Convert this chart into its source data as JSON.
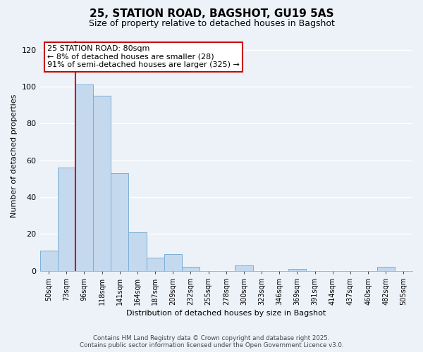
{
  "title": "25, STATION ROAD, BAGSHOT, GU19 5AS",
  "subtitle": "Size of property relative to detached houses in Bagshot",
  "xlabel": "Distribution of detached houses by size in Bagshot",
  "ylabel": "Number of detached properties",
  "bar_labels": [
    "50sqm",
    "73sqm",
    "96sqm",
    "118sqm",
    "141sqm",
    "164sqm",
    "187sqm",
    "209sqm",
    "232sqm",
    "255sqm",
    "278sqm",
    "300sqm",
    "323sqm",
    "346sqm",
    "369sqm",
    "391sqm",
    "414sqm",
    "437sqm",
    "460sqm",
    "482sqm",
    "505sqm"
  ],
  "bar_values": [
    11,
    56,
    101,
    95,
    53,
    21,
    7,
    9,
    2,
    0,
    0,
    3,
    0,
    0,
    1,
    0,
    0,
    0,
    0,
    2,
    0
  ],
  "bar_color": "#c5d9ee",
  "bar_edge_color": "#7aafd4",
  "vline_color": "#cc0000",
  "vline_x_index": 1,
  "ylim": [
    0,
    125
  ],
  "yticks": [
    0,
    20,
    40,
    60,
    80,
    100,
    120
  ],
  "annotation_title": "25 STATION ROAD: 80sqm",
  "annotation_line1": "← 8% of detached houses are smaller (28)",
  "annotation_line2": "91% of semi-detached houses are larger (325) →",
  "annotation_box_color": "#ffffff",
  "annotation_box_edge": "#cc0000",
  "footer_line1": "Contains HM Land Registry data © Crown copyright and database right 2025.",
  "footer_line2": "Contains public sector information licensed under the Open Government Licence v3.0.",
  "background_color": "#edf2f9",
  "grid_color": "#ffffff"
}
